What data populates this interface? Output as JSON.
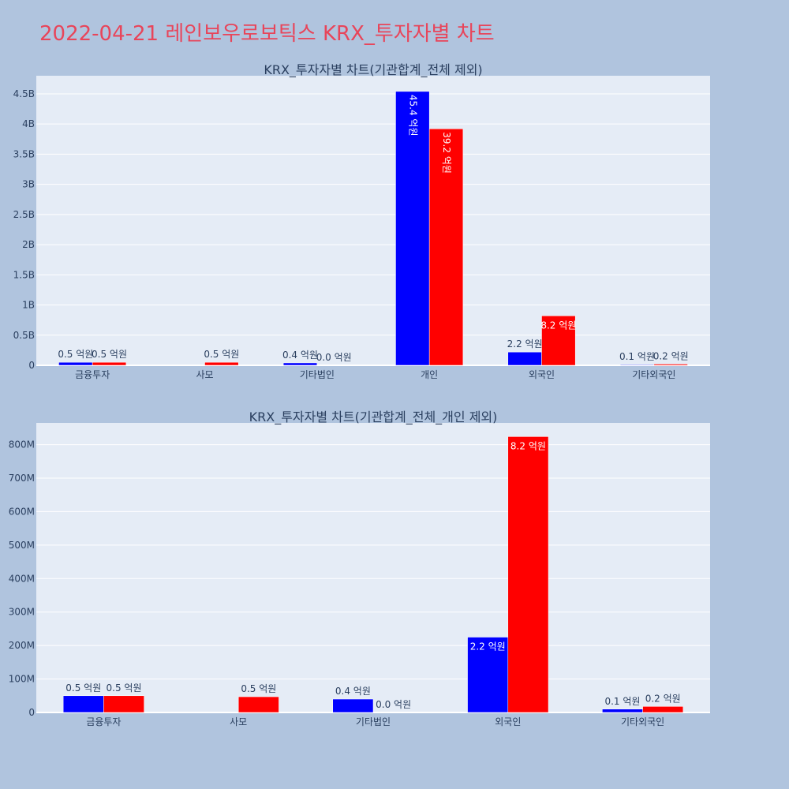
{
  "page": {
    "title": "2022-04-21 레인보우로보틱스 KRX_투자자별 차트"
  },
  "colors": {
    "background": "#b0c4de",
    "plot_background": "#e5ecf6",
    "series_a": "#0000ff",
    "series_b": "#ff0000",
    "title": "#e8455a",
    "axis_text": "#2a3f5f"
  },
  "chart_data": [
    {
      "type": "bar",
      "title": "KRX_투자자별 차트(기관합계_전체 제외)",
      "categories": [
        "금융투자",
        "사모",
        "기타법인",
        "개인",
        "외국인",
        "기타외국인"
      ],
      "series": [
        {
          "values": [
            50000000,
            null,
            40000000,
            4540000000,
            220000000,
            10000000
          ],
          "labels": [
            "0.5 억원",
            "",
            "0.4 억원",
            "45.4 억원",
            "2.2 억원",
            "0.1 억원"
          ]
        },
        {
          "values": [
            50000000,
            50000000,
            0,
            3920000000,
            820000000,
            20000000
          ],
          "labels": [
            "0.5 억원",
            "0.5 억원",
            "0.0 억원",
            "39.2 억원",
            "8.2 억원",
            "0.2 억원"
          ]
        }
      ],
      "yticks": [
        0,
        500000000,
        1000000000,
        1500000000,
        2000000000,
        2500000000,
        3000000000,
        3500000000,
        4000000000,
        4500000000
      ],
      "ytick_labels": [
        "0",
        "0.5B",
        "1B",
        "1.5B",
        "2B",
        "2.5B",
        "3B",
        "3.5B",
        "4B",
        "4.5B"
      ],
      "ylim": [
        0,
        4800000000
      ],
      "grid": true,
      "inside_labels": [
        false,
        false,
        false,
        true,
        false,
        false
      ],
      "inside_labels_b": [
        false,
        false,
        false,
        true,
        true,
        false
      ],
      "rotated_inside": true
    },
    {
      "type": "bar",
      "title": "KRX_투자자별 차트(기관합계_전체_개인 제외)",
      "categories": [
        "금융투자",
        "사모",
        "기타법인",
        "외국인",
        "기타외국인"
      ],
      "series": [
        {
          "values": [
            50000000,
            null,
            40000000,
            225000000,
            10000000
          ],
          "labels": [
            "0.5 억원",
            "",
            "0.4 억원",
            "2.2 억원",
            "0.1 억원"
          ]
        },
        {
          "values": [
            50000000,
            47000000,
            0,
            824000000,
            18000000
          ],
          "labels": [
            "0.5 억원",
            "0.5 억원",
            "0.0 억원",
            "8.2 억원",
            "0.2 억원"
          ]
        }
      ],
      "yticks": [
        0,
        100000000,
        200000000,
        300000000,
        400000000,
        500000000,
        600000000,
        700000000,
        800000000
      ],
      "ytick_labels": [
        "0",
        "100M",
        "200M",
        "300M",
        "400M",
        "500M",
        "600M",
        "700M",
        "800M"
      ],
      "ylim": [
        0,
        865000000
      ],
      "grid": true,
      "inside_labels": [
        false,
        false,
        false,
        true,
        false
      ],
      "inside_labels_b": [
        false,
        false,
        false,
        true,
        false
      ],
      "rotated_inside": false
    }
  ]
}
